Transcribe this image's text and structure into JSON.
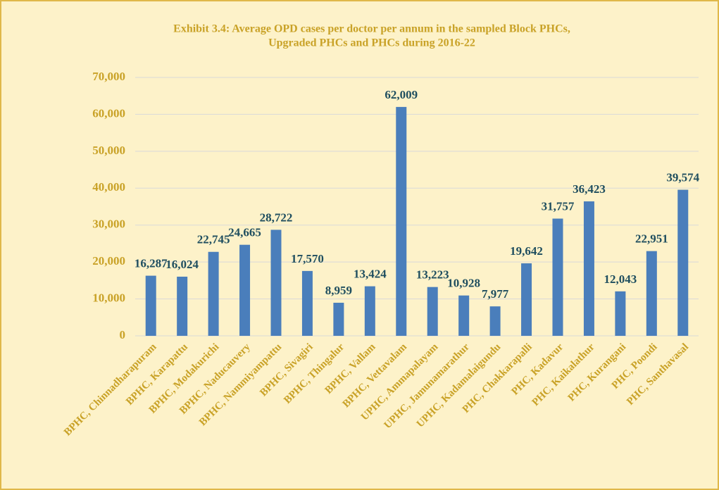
{
  "chart_data": {
    "type": "bar",
    "title": [
      "Exhibit 3.4: Average OPD cases per doctor per annum in the sampled Block PHCs,",
      "Upgraded PHCs and PHCs during 2016-22"
    ],
    "categories": [
      "BPHC, Chinnadharapuram",
      "BPHC, Karapattu",
      "BPHC, Modakurichi",
      "BPHC, Naducauvery",
      "BPHC, Nammiyampattu",
      "BPHC, Sivagiri",
      "BPHC, Thingalur",
      "BPHC, Vallam",
      "BPHC, Vettavalam",
      "UPHC, Ammapalayam",
      "UPHC, Jamunamarathur",
      "UPHC, Kadamalaigundu",
      "PHC, Chakkarapalli",
      "PHC, Kadavur",
      "PHC, Kaikalathur",
      "PHC, Kurangani",
      "PHC, Poondi",
      "PHC, Santhavasal"
    ],
    "values": [
      16287,
      16024,
      22745,
      24665,
      28722,
      17570,
      8959,
      13424,
      62009,
      13223,
      10928,
      7977,
      19642,
      31757,
      36423,
      12043,
      22951,
      39574
    ],
    "value_labels": [
      "16,287",
      "16,024",
      "22,745",
      "24,665",
      "28,722",
      "17,570",
      "8,959",
      "13,424",
      "62,009",
      "13,223",
      "10,928",
      "7,977",
      "19,642",
      "31,757",
      "36,423",
      "12,043",
      "22,951",
      "39,574"
    ],
    "color": "#4a7ebb",
    "ylim": [
      0,
      70000
    ],
    "yticks": [
      0,
      {
        "value": 10000,
        "label": "10,000"
      },
      {
        "value": 20000,
        "label": "20,000"
      },
      {
        "value": 30000,
        "label": "30,000"
      },
      {
        "value": 40000,
        "label": "40,000"
      },
      {
        "value": 50000,
        "label": "50,000"
      },
      {
        "value": 60000,
        "label": "60,000"
      },
      {
        "value": 70000,
        "label": "70,000"
      }
    ],
    "grid": true
  }
}
